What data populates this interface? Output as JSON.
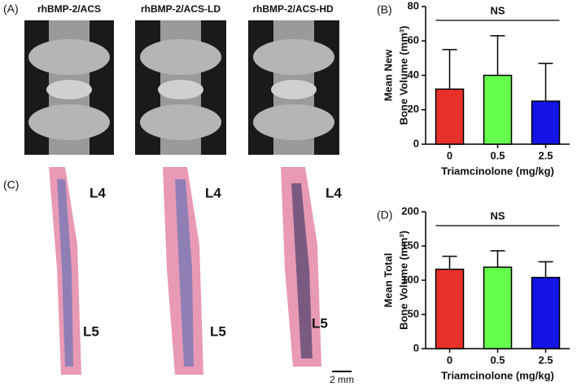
{
  "panels": {
    "a": {
      "label": "(A)",
      "captions": [
        "rhBMP-2/ACS",
        "rhBMP-2/ACS-LD",
        "rhBMP-2/ACS-HD"
      ]
    },
    "c": {
      "label": "(C)",
      "levels": [
        "L4",
        "L5"
      ],
      "scale_bar": "2 mm"
    }
  },
  "chart_data": [
    {
      "type": "bar",
      "panel_label": "(B)",
      "ylabel": [
        "Mean New",
        "Bone Volume (mm³)"
      ],
      "xlabel": "Triamcinolone (mg/kg)",
      "categories": [
        "0",
        "0.5",
        "2.5"
      ],
      "values": [
        32,
        40,
        25
      ],
      "errors": [
        23,
        23,
        22
      ],
      "colors": [
        "#e8302a",
        "#66ff4d",
        "#1414e6"
      ],
      "ylim": [
        0,
        80
      ],
      "yticks": [
        0,
        20,
        40,
        60,
        80
      ],
      "annotation": "NS"
    },
    {
      "type": "bar",
      "panel_label": "(D)",
      "ylabel": [
        "Mean Total",
        "Bone Volume (mm³)"
      ],
      "xlabel": "Triamcinolone (mg/kg)",
      "categories": [
        "0",
        "0.5",
        "2.5"
      ],
      "values": [
        116,
        119,
        104
      ],
      "errors": [
        19,
        24,
        23
      ],
      "colors": [
        "#e8302a",
        "#66ff4d",
        "#1414e6"
      ],
      "ylim": [
        0,
        200
      ],
      "yticks": [
        0,
        50,
        100,
        150,
        200
      ],
      "annotation": "NS"
    }
  ]
}
